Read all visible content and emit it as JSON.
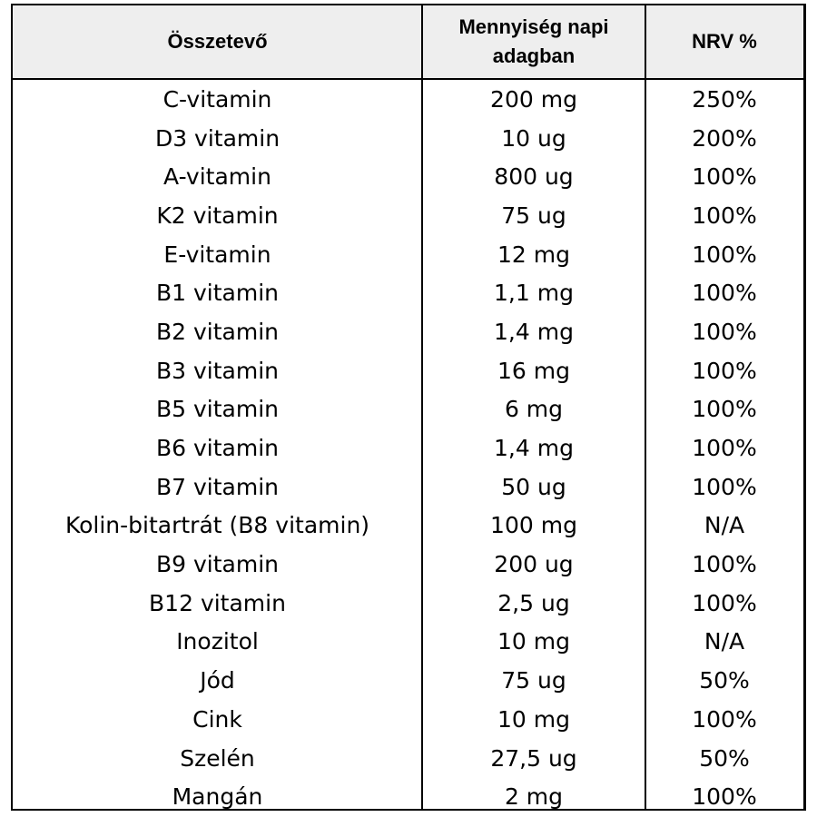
{
  "table": {
    "headers": {
      "ingredient": "Összetevő",
      "amount_line1": "Mennyiség napi",
      "amount_line2": "adagban",
      "nrv": "NRV %"
    },
    "rows": [
      {
        "ingredient": "C-vitamin",
        "amount": "200 mg",
        "nrv": "250%"
      },
      {
        "ingredient": "D3 vitamin",
        "amount": "10 ug",
        "nrv": "200%"
      },
      {
        "ingredient": "A-vitamin",
        "amount": "800 ug",
        "nrv": "100%"
      },
      {
        "ingredient": "K2 vitamin",
        "amount": "75 ug",
        "nrv": "100%"
      },
      {
        "ingredient": "E-vitamin",
        "amount": "12 mg",
        "nrv": "100%"
      },
      {
        "ingredient": "B1 vitamin",
        "amount": "1,1 mg",
        "nrv": "100%"
      },
      {
        "ingredient": "B2 vitamin",
        "amount": "1,4 mg",
        "nrv": "100%"
      },
      {
        "ingredient": "B3 vitamin",
        "amount": "16 mg",
        "nrv": "100%"
      },
      {
        "ingredient": "B5 vitamin",
        "amount": "6 mg",
        "nrv": "100%"
      },
      {
        "ingredient": "B6 vitamin",
        "amount": "1,4 mg",
        "nrv": "100%"
      },
      {
        "ingredient": "B7 vitamin",
        "amount": "50 ug",
        "nrv": "100%"
      },
      {
        "ingredient": "Kolin-bitartrát (B8 vitamin)",
        "amount": "100 mg",
        "nrv": "N/A"
      },
      {
        "ingredient": "B9 vitamin",
        "amount": "200 ug",
        "nrv": "100%"
      },
      {
        "ingredient": "B12 vitamin",
        "amount": "2,5 ug",
        "nrv": "100%"
      },
      {
        "ingredient": "Inozitol",
        "amount": "10 mg",
        "nrv": "N/A"
      },
      {
        "ingredient": "Jód",
        "amount": "75 ug",
        "nrv": "50%"
      },
      {
        "ingredient": "Cink",
        "amount": "10 mg",
        "nrv": "100%"
      },
      {
        "ingredient": "Szelén",
        "amount": "27,5 ug",
        "nrv": "50%"
      },
      {
        "ingredient": "Mangán",
        "amount": "2 mg",
        "nrv": "100%"
      }
    ]
  },
  "colors": {
    "header_background": "#eeeeee",
    "border": "#000000",
    "text": "#000000"
  }
}
